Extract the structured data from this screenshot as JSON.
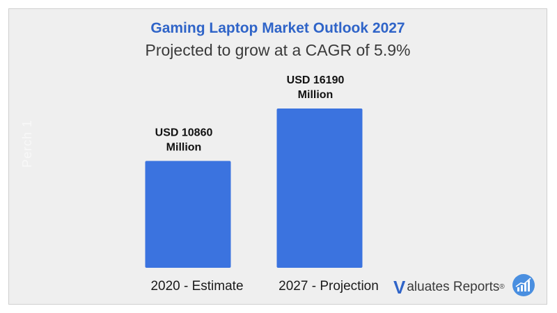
{
  "chart_data": {
    "type": "bar",
    "title": "Gaming Laptop Market Outlook 2027",
    "subtitle": "Projected to grow at a CAGR of 5.9%",
    "categories": [
      "2020 - Estimate",
      "2027  - Projection"
    ],
    "values": [
      10860,
      16190
    ],
    "data_labels": [
      [
        "USD 10860",
        "Million"
      ],
      [
        "USD 16190",
        "Million"
      ]
    ],
    "xlabel": "",
    "ylabel": "",
    "ylim": [
      0,
      16190
    ],
    "grid": false,
    "bar_color": "#3b73df"
  },
  "watermark": "Perch 1",
  "brand": {
    "mark": "V",
    "text": "aluates Reports",
    "reg": "®",
    "logo_icon": "bar-chart-trend-icon"
  },
  "colors": {
    "title": "#2f64c8",
    "background": "#efefef",
    "bar": "#3b73df"
  }
}
